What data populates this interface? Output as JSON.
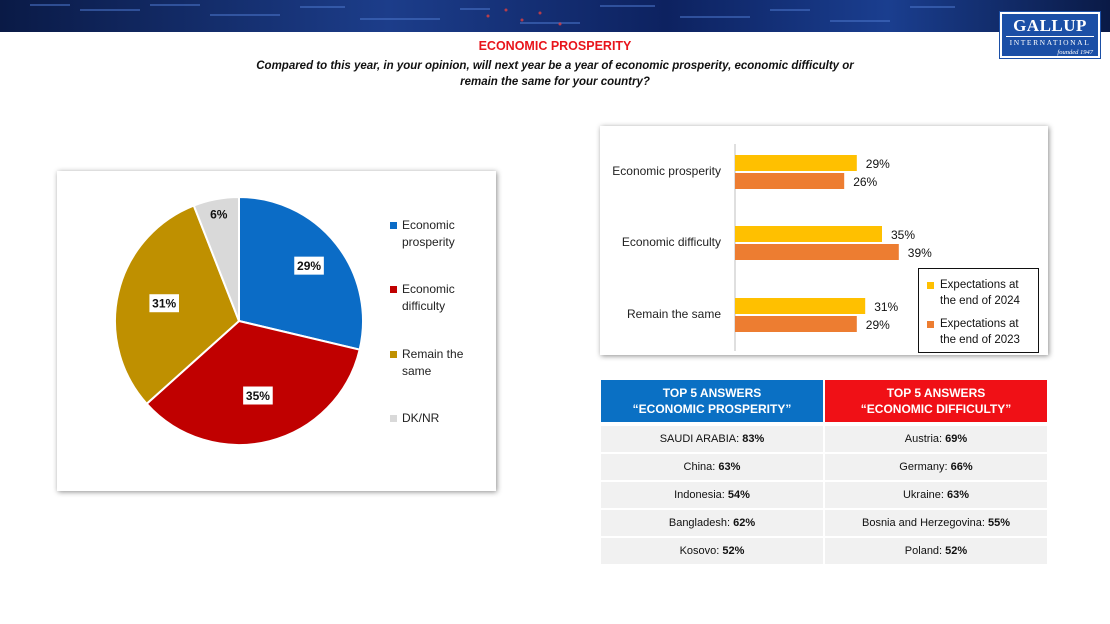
{
  "header": {
    "logo": {
      "line1": "GALLUP",
      "line2": "INTERNATIONAL",
      "line3": "founded 1947"
    },
    "title": "ECONOMIC PROSPERITY",
    "question": "Compared to this year, in your opinion, will next year be a year of economic prosperity, economic difficulty or remain the same for your country?",
    "band_color": "#0d2260"
  },
  "chart_data": [
    {
      "type": "pie",
      "categories": [
        "Economic prosperity",
        "Economic difficulty",
        "Remain the same",
        "DK/NR"
      ],
      "values": [
        29,
        35,
        31,
        6
      ],
      "data_labels": [
        "29%",
        "35%",
        "31%",
        "6%"
      ],
      "colors": [
        "#0b6cc6",
        "#c00000",
        "#bf9000",
        "#d9d9d9"
      ],
      "legend": {
        "position": "right",
        "items": [
          {
            "line1": "Economic",
            "line2": "prosperity",
            "color": "#0b6cc6"
          },
          {
            "line1": "Economic",
            "line2": "difficulty",
            "color": "#c00000"
          },
          {
            "line1": "Remain the",
            "line2": "same",
            "color": "#bf9000"
          },
          {
            "line1": "DK/NR",
            "line2": "",
            "color": "#d9d9d9"
          }
        ]
      }
    },
    {
      "type": "bar",
      "orientation": "horizontal",
      "categories": [
        "Economic prosperity",
        "Economic difficulty",
        "Remain the same"
      ],
      "series": [
        {
          "name": "Expectations at the end of 2024",
          "values": [
            29,
            35,
            31
          ],
          "labels": [
            "29%",
            "35%",
            "31%"
          ],
          "color": "#ffc000"
        },
        {
          "name": "Expectations at the end of 2023",
          "values": [
            26,
            39,
            29
          ],
          "labels": [
            "26%",
            "39%",
            "29%"
          ],
          "color": "#ed7d31"
        }
      ],
      "xlim": [
        0,
        100
      ],
      "legend": {
        "position": "bottom-right",
        "items": [
          {
            "line1": "Expectations at",
            "line2": "the end of 2024",
            "color": "#ffc000"
          },
          {
            "line1": "Expectations at",
            "line2": "the end of 2023",
            "color": "#ed7d31"
          }
        ]
      }
    }
  ],
  "tables": {
    "prosperity": {
      "header_line1": "TOP 5 ANSWERS",
      "header_line2": "“ECONOMIC PROSPERITY”",
      "color": "#0a70c4",
      "rows": [
        {
          "country": "SAUDI ARABIA:",
          "value": "83%"
        },
        {
          "country": "China:",
          "value": "63%"
        },
        {
          "country": "Indonesia:",
          "value": "54%"
        },
        {
          "country": "Bangladesh:",
          "value": "62%"
        },
        {
          "country": "Kosovo:",
          "value": "52%"
        }
      ]
    },
    "difficulty": {
      "header_line1": "TOP 5 ANSWERS",
      "header_line2": "“ECONOMIC DIFFICULTY”",
      "color": "#f01016",
      "rows": [
        {
          "country": "Austria:",
          "value": "69%"
        },
        {
          "country": "Germany:",
          "value": "66%"
        },
        {
          "country": "Ukraine:",
          "value": "63%"
        },
        {
          "country": "Bosnia and Herzegovina:",
          "value": "55%"
        },
        {
          "country": "Poland:",
          "value": "52%"
        }
      ]
    }
  }
}
